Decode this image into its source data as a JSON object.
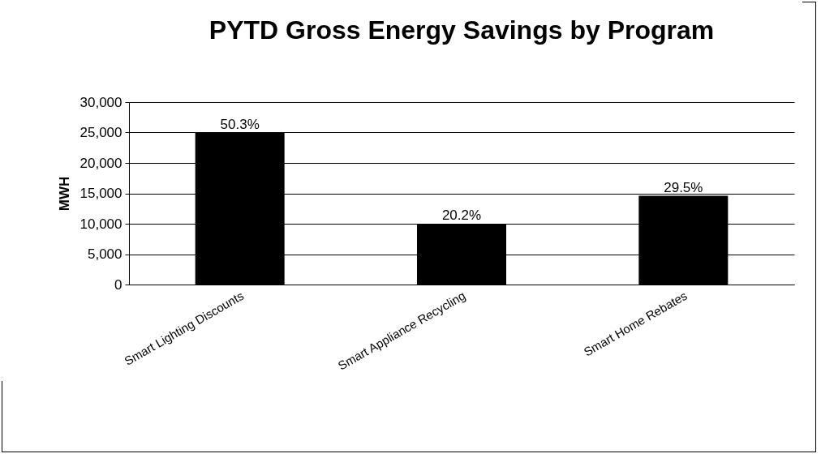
{
  "chart_data": {
    "type": "bar",
    "title": "PYTD Gross Energy Savings by Program",
    "ylabel": "MWH",
    "categories": [
      "Smart Lighting Discounts",
      "Smart Appliance Recycling",
      "Smart Home Rebates"
    ],
    "values": [
      25000,
      10000,
      14600
    ],
    "annotations": [
      {
        "text": "50.3%",
        "x": "Smart Lighting Discounts",
        "y": 25000
      },
      {
        "text": "20.2%",
        "x": "Smart Appliance Recycling",
        "y": 10000
      },
      {
        "text": "29.5%",
        "x": "Smart Home Rebates",
        "y": 14600
      }
    ],
    "color": "#000000",
    "ylim": [
      0,
      30000
    ],
    "yticks": [
      0,
      {
        "value": 5000,
        "label": "5,000"
      },
      {
        "value": 10000,
        "label": "10,000"
      },
      {
        "value": 15000,
        "label": "15,000"
      },
      {
        "value": 20000,
        "label": "20,000"
      },
      {
        "value": 25000,
        "label": "25,000"
      },
      {
        "value": 30000,
        "label": "30,000"
      }
    ],
    "grid": "y"
  }
}
